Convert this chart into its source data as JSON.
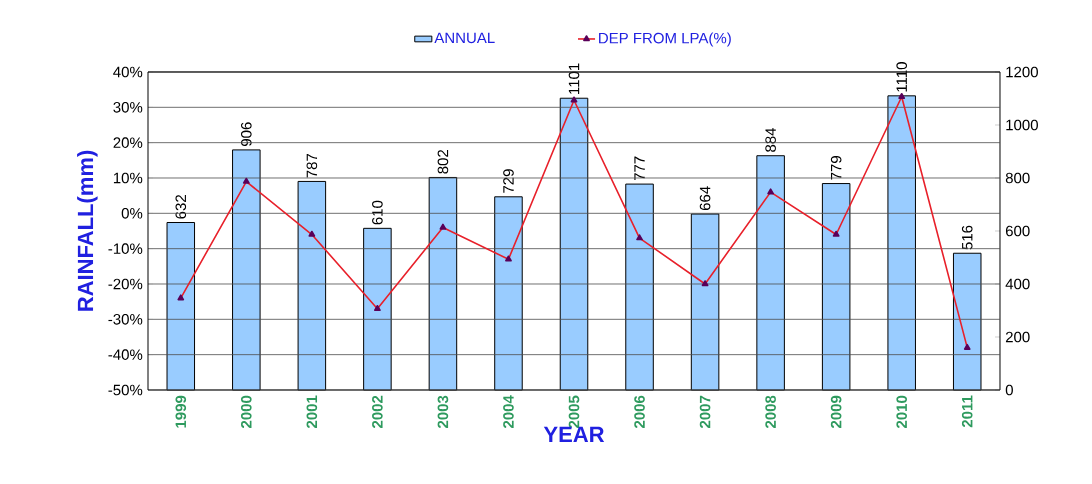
{
  "chart_data": {
    "type": "bar",
    "xlabel": "YEAR",
    "ylabel": "RAINFALL(mm)",
    "categories": [
      "1999",
      "2000",
      "2001",
      "2002",
      "2003",
      "2004",
      "2005",
      "2006",
      "2007",
      "2008",
      "2009",
      "2010",
      "2011"
    ],
    "series": [
      {
        "name": "ANNUAL",
        "axis": "y2",
        "color": "#99ccff",
        "values": [
          632,
          906,
          787,
          610,
          802,
          729,
          1101,
          777,
          664,
          884,
          779,
          1110,
          516
        ],
        "value_labels": [
          "632",
          "906",
          "787",
          "610",
          "802",
          "729",
          "1101",
          "777",
          "664",
          "884",
          "779",
          "1110",
          "516"
        ]
      },
      {
        "name": "DEP FROM LPA(%)",
        "type": "line",
        "color": "#e8202a",
        "marker": "triangle",
        "values": [
          -24,
          9,
          -6,
          -27,
          -4,
          -13,
          32,
          -7,
          -20,
          6,
          -6,
          33,
          -38
        ]
      }
    ],
    "ylim": [
      -50,
      40
    ],
    "yticks": [
      {
        "value": -50,
        "label": "-50%"
      },
      {
        "value": -40,
        "label": "-40%"
      },
      {
        "value": -30,
        "label": "-30%"
      },
      {
        "value": -20,
        "label": "-20%"
      },
      {
        "value": -10,
        "label": "-10%"
      },
      {
        "value": 0,
        "label": "0%"
      },
      {
        "value": 10,
        "label": "10%"
      },
      {
        "value": 20,
        "label": "20%"
      },
      {
        "value": 30,
        "label": "30%"
      },
      {
        "value": 40,
        "label": "40%"
      }
    ],
    "y2lim": [
      0,
      1200
    ],
    "y2ticks": [
      0,
      200,
      400,
      600,
      800,
      1000,
      1200
    ],
    "grid": "y",
    "legend": "top"
  }
}
